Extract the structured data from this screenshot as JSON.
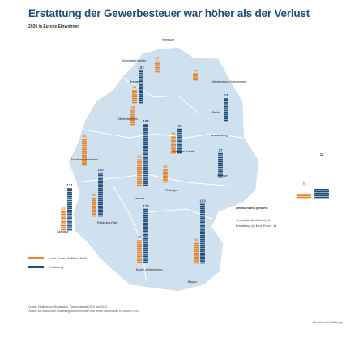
{
  "title": "Erstattung der Gewerbesteuer war höher als der Verlust",
  "subtitle": "2020 in Euro je Einwohner",
  "legend": {
    "loss_label": "netto Verlust 2020 zu 2019",
    "refund_label": "Erstattung"
  },
  "germany": {
    "name": "Deutschland gesamt:",
    "loss_line": "Verlust (in Mrd. Euro): 5",
    "refund_line": "Erstattung (in Mrd. Euro): 11",
    "loss": 5,
    "refund": 11
  },
  "source": {
    "line1": "Quelle: Statistisches Bundesamt, Kassenstatistik 2019 und 2020;",
    "line2": "Gesetz zur finanziellen Entlastung der Kommunen und neuen Länder vom 6. Oktober 2020"
  },
  "brand": "BertelsmannStiftung",
  "colors": {
    "loss": "#e8852a",
    "refund": "#1f4e79",
    "map": "#cfe0ef",
    "title": "#1f4e79"
  },
  "chart_data": {
    "type": "bar",
    "title": "Erstattung der Gewerbesteuer war höher als der Verlust",
    "subtitle": "2020 in Euro je Einwohner",
    "categories": [
      "Schleswig-Holstein",
      "Hamburg",
      "Mecklenburg-Vorpommern",
      "Bremen",
      "Niedersachsen",
      "Berlin",
      "Brandenburg",
      "Nordrhein-Westfalen",
      "Sachsen-Anhalt",
      "Sachsen",
      "Hessen",
      "Thüringen",
      "Saarland",
      "Rheinland-Pfalz",
      "Baden-Württemberg",
      "Bayern"
    ],
    "series": [
      {
        "name": "netto Verlust 2020 zu 2019",
        "values": [
          37,
          null,
          24,
          43,
          49,
          null,
          null,
          85,
          56,
          null,
          82,
          40,
          62,
          60,
          72,
          66
        ]
      },
      {
        "name": "Erstattung",
        "values": [
          null,
          null,
          null,
          102,
          null,
          74,
          null,
          null,
          78,
          77,
          193,
          null,
          131,
          140,
          170,
          183
        ]
      }
    ],
    "labels_printed": {
      "refund": [
        "114",
        "75",
        "102",
        "74",
        "152",
        "78",
        "77",
        "193",
        "131",
        "140",
        "170",
        "183",
        "11"
      ],
      "loss": [
        "37",
        "24",
        "43",
        "67",
        "49",
        "85",
        "56",
        "82",
        "40",
        "62",
        "60",
        "72",
        "66",
        "5"
      ]
    }
  }
}
